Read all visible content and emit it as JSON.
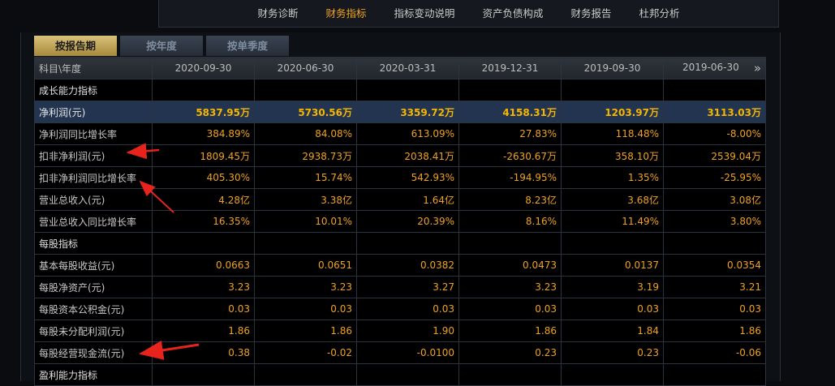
{
  "nav": {
    "items": [
      "财务诊断",
      "财务指标",
      "指标变动说明",
      "资产负债构成",
      "财务报告",
      "杜邦分析"
    ],
    "active": 1
  },
  "tabs": {
    "items": [
      "按报告期",
      "按年度",
      "按单季度"
    ],
    "active": 0
  },
  "table": {
    "header": [
      "科目\\年度",
      "2020-09-30",
      "2020-06-30",
      "2020-03-31",
      "2019-12-31",
      "2019-09-30",
      "2019-06-30"
    ],
    "rows": [
      [
        "成长能力指标"
      ],
      [
        "净利润(元)",
        "5837.95万",
        "5730.56万",
        "3359.72万",
        "4158.31万",
        "1203.97万",
        "3113.03万"
      ],
      [
        "净利润同比增长率",
        "384.89%",
        "84.08%",
        "613.09%",
        "27.83%",
        "118.48%",
        "-8.00%"
      ],
      [
        "扣非净利润(元)",
        "1809.45万",
        "2938.73万",
        "2038.41万",
        "-2630.67万",
        "358.10万",
        "2539.04万"
      ],
      [
        "扣非净利润同比增长率",
        "405.30%",
        "15.74%",
        "542.93%",
        "-194.95%",
        "1.35%",
        "-25.95%"
      ],
      [
        "营业总收入(元)",
        "4.28亿",
        "3.38亿",
        "1.64亿",
        "8.23亿",
        "3.68亿",
        "3.08亿"
      ],
      [
        "营业总收入同比增长率",
        "16.35%",
        "10.01%",
        "20.39%",
        "8.16%",
        "11.49%",
        "3.80%"
      ],
      [
        "每股指标"
      ],
      [
        "基本每股收益(元)",
        "0.0663",
        "0.0651",
        "0.0382",
        "0.0473",
        "0.0137",
        "0.0354"
      ],
      [
        "每股净资产(元)",
        "3.23",
        "3.23",
        "3.27",
        "3.23",
        "3.19",
        "3.21"
      ],
      [
        "每股资本公积金(元)",
        "0.03",
        "0.03",
        "0.03",
        "0.03",
        "0.03",
        "0.03"
      ],
      [
        "每股未分配利润(元)",
        "1.86",
        "1.86",
        "1.90",
        "1.86",
        "1.84",
        "1.86"
      ],
      [
        "每股经营现金流(元)",
        "0.38",
        "-0.02",
        "-0.0100",
        "0.23",
        "0.23",
        "-0.06"
      ],
      [
        "盈利能力指标"
      ]
    ],
    "highlight_row": 1
  }
}
